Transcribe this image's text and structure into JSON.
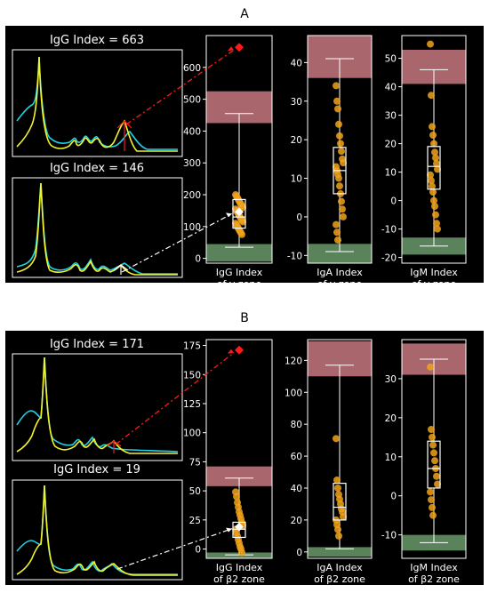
{
  "colors": {
    "background": "#000000",
    "frame": "#ffffff",
    "cyan_trace": "#22d3e6",
    "yellow_trace": "#f3f32a",
    "red_marker": "#ff1a1a",
    "red_band": "#c7787f",
    "green_band": "#6b9a6b",
    "points": "#f0a21a",
    "box": "#ffffff",
    "mean_marker": "#ffffff"
  },
  "panels": [
    {
      "label": "A",
      "trace_titles": [
        "IgG Index = 663",
        "IgG Index = 146"
      ],
      "charts": [
        {
          "type": "box",
          "xlabel": [
            "IgG Index",
            "of γ zone"
          ],
          "ylim": [
            -15,
            700
          ],
          "yticks": [
            0,
            100,
            200,
            300,
            400,
            500,
            600
          ],
          "red_band": [
            425,
            525
          ],
          "green_band": [
            -10,
            45
          ],
          "box": {
            "whisker_low": 35,
            "q1": 95,
            "median": 130,
            "q3": 185,
            "whisker_high": 455,
            "mean": 146
          },
          "points": [
            200,
            195,
            190,
            185,
            180,
            175,
            170,
            165,
            160,
            155,
            150,
            145,
            140,
            135,
            130,
            125,
            120,
            115,
            110,
            105,
            100,
            95,
            90,
            85,
            80,
            75
          ],
          "outlier": 663,
          "highlight": 146
        },
        {
          "type": "box",
          "xlabel": [
            "IgA Index",
            "of γ zone"
          ],
          "ylim": [
            -12,
            47
          ],
          "yticks": [
            -10,
            0,
            10,
            20,
            30,
            40
          ],
          "red_band": [
            36,
            47
          ],
          "green_band": [
            -12,
            -7
          ],
          "box": {
            "whisker_low": -9,
            "q1": 6,
            "median": 12,
            "q3": 18,
            "whisker_high": 41
          },
          "points": [
            34,
            30,
            28,
            24,
            21,
            19,
            17,
            15,
            14,
            13,
            12,
            11,
            10,
            8,
            6,
            4,
            2,
            0,
            -2,
            -4,
            -6
          ]
        },
        {
          "type": "box",
          "xlabel": [
            "IgM Index",
            "of γ zone"
          ],
          "ylim": [
            -22,
            58
          ],
          "yticks": [
            -20,
            -10,
            0,
            10,
            20,
            30,
            40,
            50
          ],
          "red_band": [
            41,
            53
          ],
          "green_band": [
            -19,
            -13
          ],
          "box": {
            "whisker_low": -16,
            "q1": 4,
            "median": 12,
            "q3": 19,
            "whisker_high": 46
          },
          "points": [
            55,
            37,
            26,
            23,
            20,
            17,
            15,
            13,
            11,
            9,
            7,
            5,
            3,
            0,
            -2,
            -5,
            -8,
            -10
          ]
        }
      ]
    },
    {
      "label": "B",
      "trace_titles": [
        "IgG Index = 171",
        "IgG Index = 19"
      ],
      "charts": [
        {
          "type": "box",
          "xlabel": [
            "IgG Index",
            "of β2 zone"
          ],
          "ylim": [
            -8,
            180
          ],
          "yticks": [
            0,
            25,
            50,
            75,
            100,
            125,
            150,
            175
          ],
          "red_band": [
            54,
            71
          ],
          "green_band": [
            -8,
            -3
          ],
          "box": {
            "whisker_low": -5,
            "q1": 10,
            "median": 17,
            "q3": 23,
            "whisker_high": 61,
            "mean": 19
          },
          "points": [
            49,
            45,
            40,
            36,
            32,
            29,
            26,
            23,
            20,
            17,
            14,
            11,
            8,
            5,
            2,
            0,
            -3
          ],
          "outlier": 171,
          "highlight": 19
        },
        {
          "type": "box",
          "xlabel": [
            "IgA Index",
            "of β2 zone"
          ],
          "ylim": [
            -4,
            133
          ],
          "yticks": [
            0,
            20,
            40,
            60,
            80,
            100,
            120
          ],
          "red_band": [
            110,
            132
          ],
          "green_band": [
            -3,
            3
          ],
          "box": {
            "whisker_low": 2,
            "q1": 20,
            "median": 28,
            "q3": 43,
            "whisker_high": 117
          },
          "points": [
            71,
            45,
            40,
            36,
            33,
            30,
            27,
            25,
            22,
            20,
            17,
            14,
            10
          ]
        },
        {
          "type": "box",
          "xlabel": [
            "IgM Index",
            "of β2 zone"
          ],
          "ylim": [
            -16,
            40
          ],
          "yticks": [
            -10,
            0,
            10,
            20,
            30
          ],
          "red_band": [
            31,
            39
          ],
          "green_band": [
            -14,
            -10
          ],
          "box": {
            "whisker_low": -12,
            "q1": 2,
            "median": 7,
            "q3": 14,
            "whisker_high": 35
          },
          "points": [
            33,
            17,
            15,
            13,
            11,
            9,
            7,
            5,
            3,
            1,
            -1,
            -3,
            -5
          ]
        }
      ]
    }
  ]
}
